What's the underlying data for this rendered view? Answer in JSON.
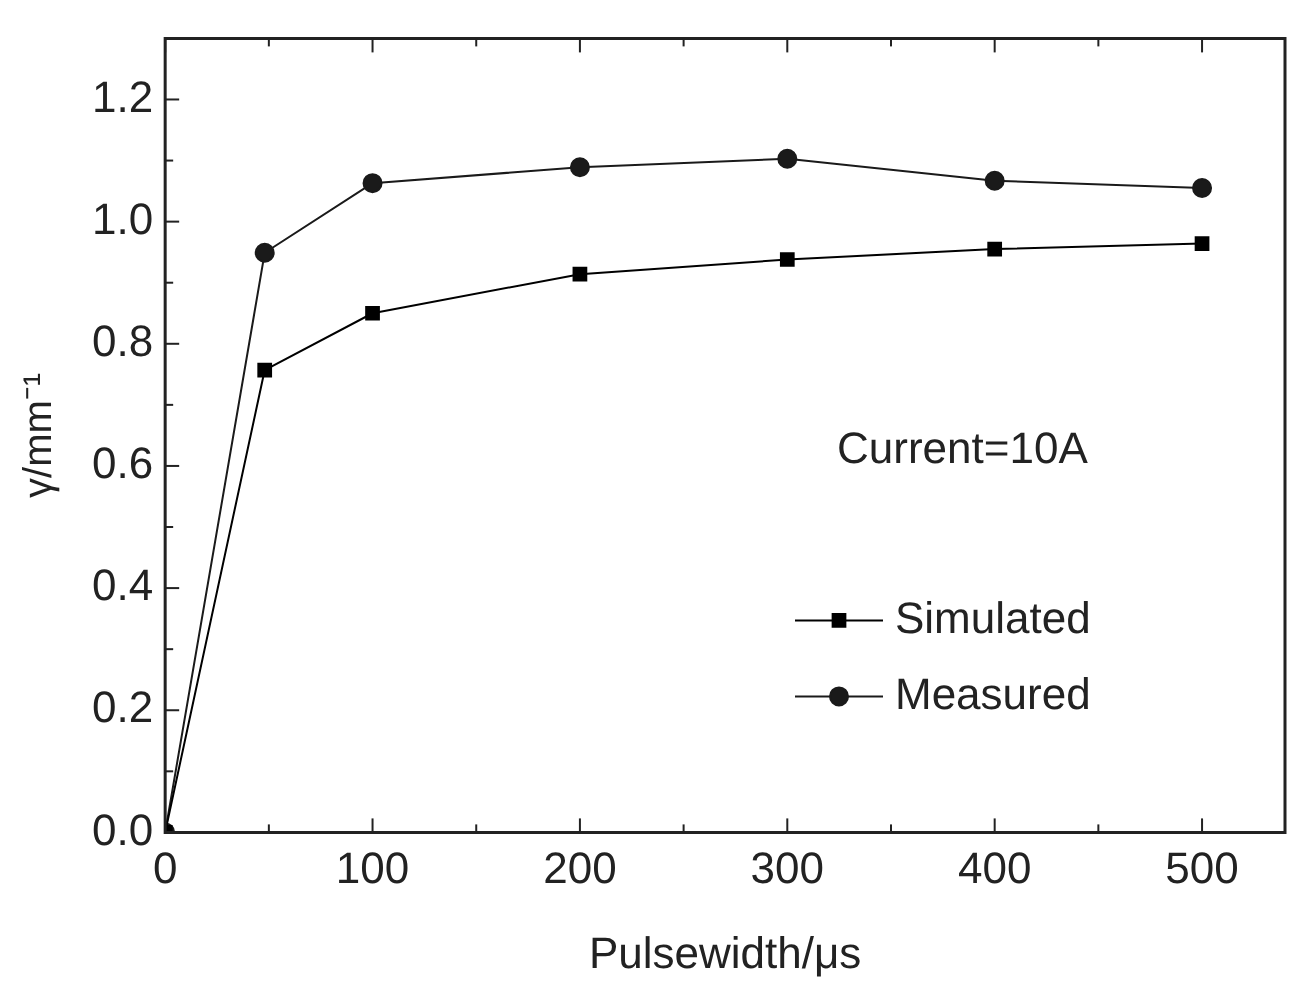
{
  "chart_data": {
    "type": "line",
    "xlabel": "Pulsewidth/μs",
    "ylabel": "γ/mm⁻¹",
    "x": [
      0,
      48,
      100,
      200,
      300,
      400,
      500
    ],
    "series": [
      {
        "name": "Simulated",
        "color": "#000000",
        "marker": "square",
        "values": [
          0,
          0.757,
          0.85,
          0.914,
          0.938,
          0.955,
          0.964
        ]
      },
      {
        "name": "Measured",
        "color": "#1a1a1a",
        "marker": "circle",
        "values": [
          0,
          0.949,
          1.063,
          1.089,
          1.103,
          1.067,
          1.055
        ]
      }
    ],
    "xlim": [
      0,
      540
    ],
    "xticks": [
      0,
      100,
      200,
      300,
      400,
      500
    ],
    "ylim": [
      0,
      1.3
    ],
    "yticks": [
      {
        "value": 0,
        "label": "0.0"
      },
      {
        "value": 0.2,
        "label": "0.2"
      },
      {
        "value": 0.4,
        "label": "0.4"
      },
      {
        "value": 0.6,
        "label": "0.6"
      },
      {
        "value": 0.8,
        "label": "0.8"
      },
      {
        "value": 1.0,
        "label": "1.0"
      },
      {
        "value": 1.2,
        "label": "1.2"
      }
    ],
    "grid": false,
    "legend": "bottom right",
    "line_style": "solid",
    "annotations": [
      "Current=10A"
    ]
  }
}
